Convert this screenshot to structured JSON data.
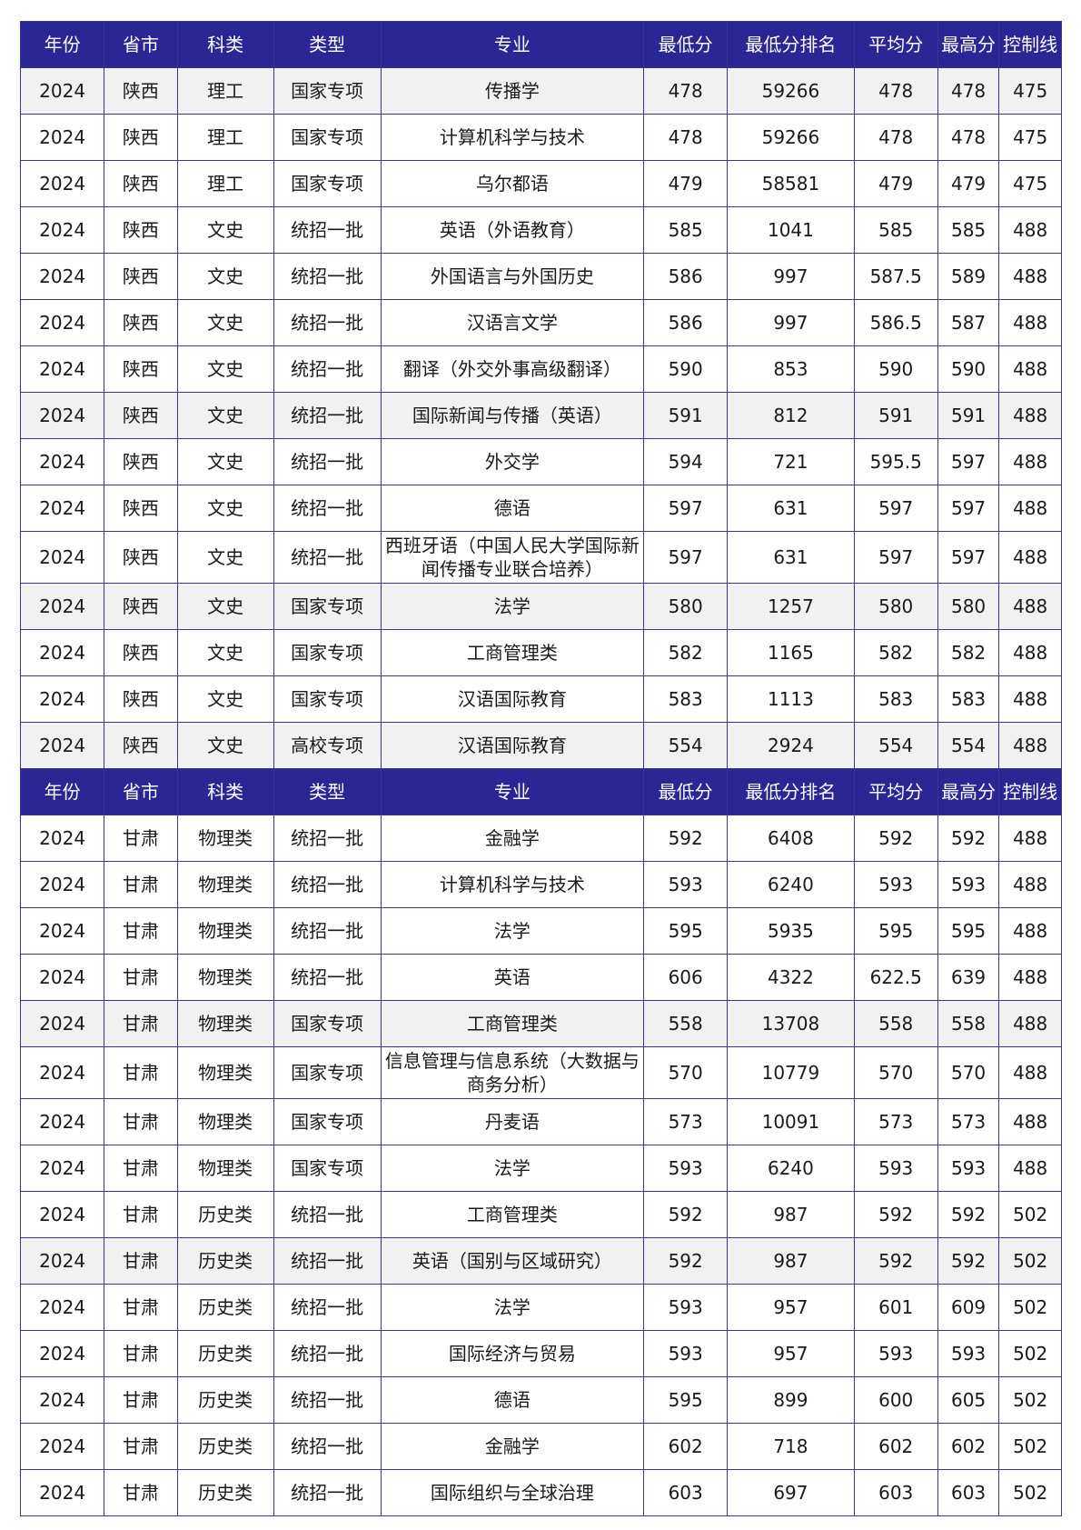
{
  "headers": [
    "年份",
    "省市",
    "科类",
    "类型",
    "专业",
    "最低分",
    "最低分排名",
    "平均分",
    "最高分",
    "控制线"
  ],
  "sections": [
    {
      "rows": [
        [
          "2024",
          "陕西",
          "理工",
          "国家专项",
          "传播学",
          "478",
          "59266",
          "478",
          "478",
          "475"
        ],
        [
          "2024",
          "陕西",
          "理工",
          "国家专项",
          "计算机科学与技术",
          "478",
          "59266",
          "478",
          "478",
          "475"
        ],
        [
          "2024",
          "陕西",
          "理工",
          "国家专项",
          "乌尔都语",
          "479",
          "58581",
          "479",
          "479",
          "475"
        ],
        [
          "2024",
          "陕西",
          "文史",
          "统招一批",
          "英语（外语教育）",
          "585",
          "1041",
          "585",
          "585",
          "488"
        ],
        [
          "2024",
          "陕西",
          "文史",
          "统招一批",
          "外国语言与外国历史",
          "586",
          "997",
          "587.5",
          "589",
          "488"
        ],
        [
          "2024",
          "陕西",
          "文史",
          "统招一批",
          "汉语言文学",
          "586",
          "997",
          "586.5",
          "587",
          "488"
        ],
        [
          "2024",
          "陕西",
          "文史",
          "统招一批",
          "翻译（外交外事高级翻译）",
          "590",
          "853",
          "590",
          "590",
          "488"
        ],
        [
          "2024",
          "陕西",
          "文史",
          "统招一批",
          "国际新闻与传播（英语）",
          "591",
          "812",
          "591",
          "591",
          "488"
        ],
        [
          "2024",
          "陕西",
          "文史",
          "统招一批",
          "外交学",
          "594",
          "721",
          "595.5",
          "597",
          "488"
        ],
        [
          "2024",
          "陕西",
          "文史",
          "统招一批",
          "德语",
          "597",
          "631",
          "597",
          "597",
          "488"
        ],
        [
          "2024",
          "陕西",
          "文史",
          "统招一批",
          "西班牙语（中国人民大学国际新闻传播专业联合培养）",
          "597",
          "631",
          "597",
          "597",
          "488"
        ],
        [
          "2024",
          "陕西",
          "文史",
          "国家专项",
          "法学",
          "580",
          "1257",
          "580",
          "580",
          "488"
        ],
        [
          "2024",
          "陕西",
          "文史",
          "国家专项",
          "工商管理类",
          "582",
          "1165",
          "582",
          "582",
          "488"
        ],
        [
          "2024",
          "陕西",
          "文史",
          "国家专项",
          "汉语国际教育",
          "583",
          "1113",
          "583",
          "583",
          "488"
        ],
        [
          "2024",
          "陕西",
          "文史",
          "高校专项",
          "汉语国际教育",
          "554",
          "2924",
          "554",
          "554",
          "488"
        ]
      ]
    },
    {
      "rows": [
        [
          "2024",
          "甘肃",
          "物理类",
          "统招一批",
          "金融学",
          "592",
          "6408",
          "592",
          "592",
          "488"
        ],
        [
          "2024",
          "甘肃",
          "物理类",
          "统招一批",
          "计算机科学与技术",
          "593",
          "6240",
          "593",
          "593",
          "488"
        ],
        [
          "2024",
          "甘肃",
          "物理类",
          "统招一批",
          "法学",
          "595",
          "5935",
          "595",
          "595",
          "488"
        ],
        [
          "2024",
          "甘肃",
          "物理类",
          "统招一批",
          "英语",
          "606",
          "4322",
          "622.5",
          "639",
          "488"
        ],
        [
          "2024",
          "甘肃",
          "物理类",
          "国家专项",
          "工商管理类",
          "558",
          "13708",
          "558",
          "558",
          "488"
        ],
        [
          "2024",
          "甘肃",
          "物理类",
          "国家专项",
          "信息管理与信息系统（大数据与商务分析）",
          "570",
          "10779",
          "570",
          "570",
          "488"
        ],
        [
          "2024",
          "甘肃",
          "物理类",
          "国家专项",
          "丹麦语",
          "573",
          "10091",
          "573",
          "573",
          "488"
        ],
        [
          "2024",
          "甘肃",
          "物理类",
          "国家专项",
          "法学",
          "593",
          "6240",
          "593",
          "593",
          "488"
        ],
        [
          "2024",
          "甘肃",
          "历史类",
          "统招一批",
          "工商管理类",
          "592",
          "987",
          "592",
          "592",
          "502"
        ],
        [
          "2024",
          "甘肃",
          "历史类",
          "统招一批",
          "英语（国别与区域研究）",
          "592",
          "987",
          "592",
          "592",
          "502"
        ],
        [
          "2024",
          "甘肃",
          "历史类",
          "统招一批",
          "法学",
          "593",
          "957",
          "601",
          "609",
          "502"
        ],
        [
          "2024",
          "甘肃",
          "历史类",
          "统招一批",
          "国际经济与贸易",
          "593",
          "957",
          "593",
          "593",
          "502"
        ],
        [
          "2024",
          "甘肃",
          "历史类",
          "统招一批",
          "德语",
          "595",
          "899",
          "600",
          "605",
          "502"
        ],
        [
          "2024",
          "甘肃",
          "历史类",
          "统招一批",
          "金融学",
          "602",
          "718",
          "602",
          "602",
          "502"
        ],
        [
          "2024",
          "甘肃",
          "历史类",
          "统招一批",
          "国际组织与全球治理",
          "603",
          "697",
          "603",
          "603",
          "502"
        ]
      ]
    }
  ],
  "colors": {
    "header_bg": "#2a2696",
    "border": "#3a3494",
    "shade": "#f1f1f1"
  }
}
